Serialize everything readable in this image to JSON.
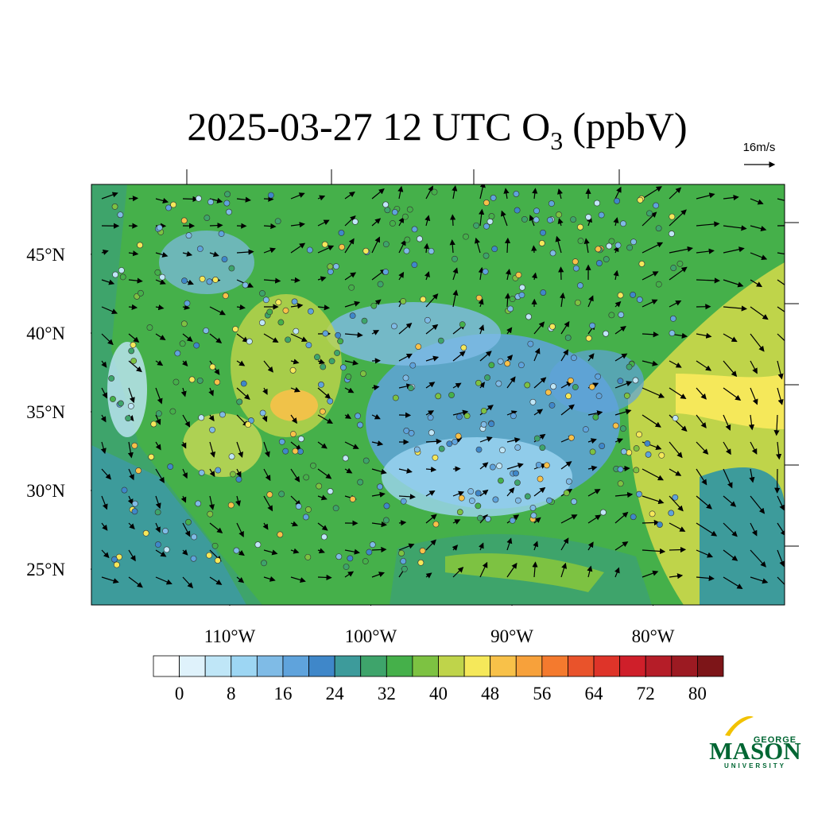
{
  "header": {
    "title_main": "2025-03-27 12 UTC O",
    "title_subscript": "3",
    "title_unit": "(ppbV)",
    "reference_vector": "16m/s"
  },
  "map": {
    "lat_range": [
      22.73,
      49.44
    ],
    "lon_range": [
      -119.8,
      -70.68
    ],
    "lat_ticks": [
      {
        "value": 45,
        "label": "45°N"
      },
      {
        "value": 40,
        "label": "40°N"
      },
      {
        "value": 35,
        "label": "35°N"
      },
      {
        "value": 30,
        "label": "30°N"
      },
      {
        "value": 25,
        "label": "25°N"
      }
    ],
    "lon_ticks": [
      {
        "value": -110,
        "label": "110°W"
      },
      {
        "value": -100,
        "label": "100°W"
      },
      {
        "value": -90,
        "label": "90°W"
      },
      {
        "value": -80,
        "label": "80°W"
      }
    ]
  },
  "colorbar": {
    "range": [
      -4,
      84
    ],
    "colors": [
      "#ffffff",
      "#dff2fb",
      "#bfe6f7",
      "#9dd6f3",
      "#7fbbe6",
      "#5fa3dc",
      "#3f87c9",
      "#3d9b9b",
      "#3ea46b",
      "#45b04a",
      "#7dc242",
      "#bfd44a",
      "#f5e85a",
      "#f8c149",
      "#f7a13b",
      "#f47a2e",
      "#e9532b",
      "#de3429",
      "#cf1f2a",
      "#b51d28",
      "#9c1a22",
      "#7d1518"
    ],
    "ticks": [
      0,
      8,
      16,
      24,
      32,
      40,
      48,
      56,
      64,
      72,
      80
    ]
  },
  "logo": {
    "line1": "GEORGE",
    "line2": "MASON",
    "line3": "UNIVERSITY"
  }
}
